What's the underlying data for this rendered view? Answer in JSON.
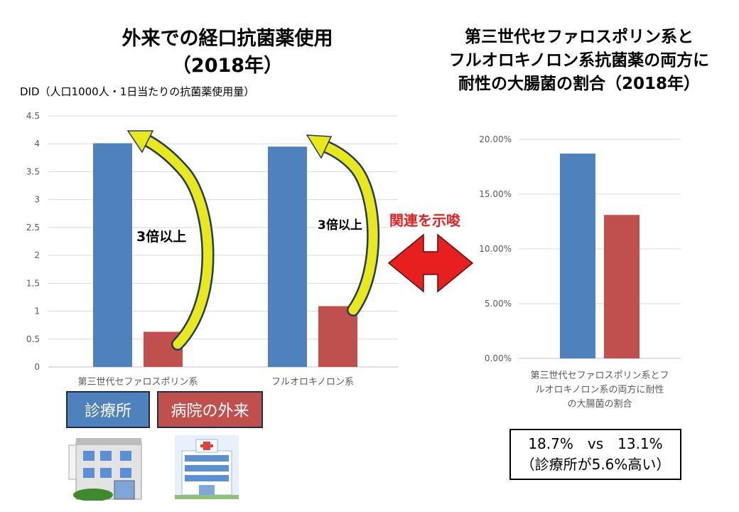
{
  "left_title": {
    "line1": "外来での経口抗菌薬使用",
    "line2": "（2018年）"
  },
  "right_title": {
    "line1": "第三世代セファロスポリン系と",
    "line2": "フルオロキノロン系抗菌薬の両方に",
    "line3": "耐性の大腸菌の割合（2018年）"
  },
  "unit_label": "DID（人口1000人・1日当たりの抗菌薬使用量）",
  "annotations": {
    "left_arrow_label": "3倍以上",
    "right_arrow_label": "3倍以上",
    "relation_label": "関連を示唆"
  },
  "legend": {
    "clinic": "診療所",
    "hospital": "病院の外来"
  },
  "result": {
    "line1": "18.7%　vs　13.1%",
    "line2": "（診療所が5.6%高い）"
  },
  "colors": {
    "clinic": "#4f81bd",
    "hospital": "#c0504d",
    "arrow_yellow": "#e8e81a",
    "relation_red": "#e81f1f"
  },
  "icons": {
    "clinic": "clinic-building-icon",
    "hospital": "hospital-building-icon",
    "relation": "double-arrow-icon",
    "increase": "curved-arrow-icon"
  },
  "chart_data": [
    {
      "type": "bar",
      "categories": [
        "第三世代セファロスポリン系",
        "フルオロキノロン系"
      ],
      "series": [
        {
          "name": "診療所",
          "values": [
            4.01,
            3.95
          ]
        },
        {
          "name": "病院の外来",
          "values": [
            0.63,
            1.09
          ]
        }
      ],
      "ylim": [
        0,
        4.5
      ],
      "yticks": [
        "0",
        "0.5",
        "1",
        "1.5",
        "2",
        "2.5",
        "3",
        "3.5",
        "4",
        "4.5"
      ],
      "ylabel": "DID（人口1000人・1日当たりの抗菌薬使用量）",
      "grid": true
    },
    {
      "type": "bar",
      "categories": [
        "第三世代セファロスポリン系とフルオロキノロン系の両方に耐性の大腸菌の割合"
      ],
      "category_lines": [
        "第三世代セファロスポリン系とフ",
        "ルオロキノロン系の両方に耐性",
        "の大腸菌の割合"
      ],
      "series": [
        {
          "name": "診療所",
          "values": [
            18.7
          ]
        },
        {
          "name": "病院の外来",
          "values": [
            13.1
          ]
        }
      ],
      "ylim": [
        0,
        20
      ],
      "yticks": [
        "0.00%",
        "5.00%",
        "10.00%",
        "15.00%",
        "20.00%"
      ],
      "grid": true
    }
  ]
}
